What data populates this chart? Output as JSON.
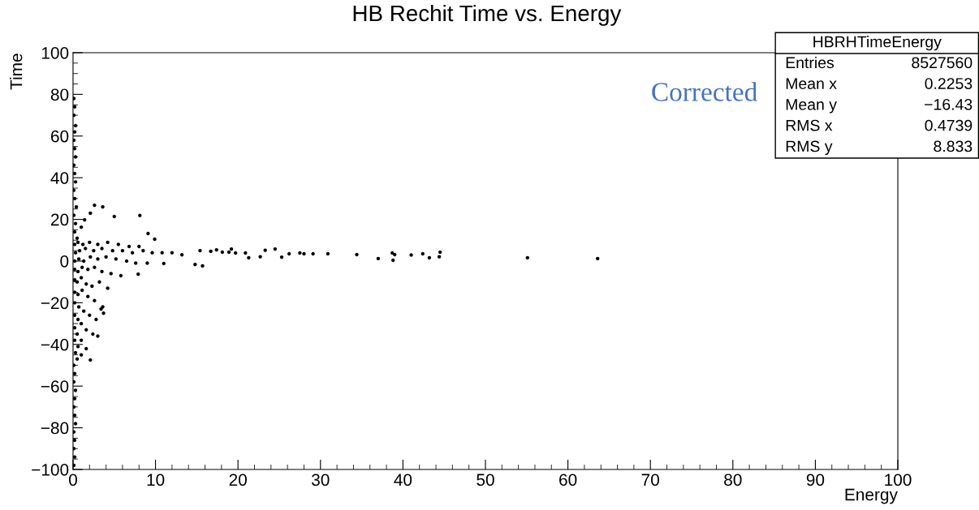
{
  "chart_data": {
    "type": "scatter",
    "title": "HB Rechit Time vs. Energy",
    "xlabel": "Energy",
    "ylabel": "Time",
    "annotations": [
      "Corrected",
      "HBRHTimeEnergy",
      "Entries",
      "8527560",
      "Mean x",
      "0.2253",
      "Mean y",
      "−16.43",
      "RMS x",
      "0.4739",
      "RMS y",
      "8.833"
    ],
    "xlim": [
      0,
      100
    ],
    "ylim": [
      -100,
      100
    ],
    "xticks": [
      0,
      10,
      20,
      30,
      40,
      50,
      60,
      70,
      80,
      90,
      100
    ],
    "yticks": [
      {
        "value": -100,
        "label": "−100"
      },
      {
        "value": -80,
        "label": "−80"
      },
      {
        "value": -60,
        "label": "−60"
      },
      {
        "value": -40,
        "label": "−40"
      },
      {
        "value": -20,
        "label": "−20"
      },
      0,
      20,
      40,
      60,
      80,
      100
    ],
    "marker": "circle",
    "grid": false,
    "legend": false,
    "series": [
      {
        "color": "#000000",
        "x": [
          0.1,
          0.2,
          0.1,
          0.3,
          0.2,
          0.1,
          0.2,
          0.3,
          0.1,
          0.2,
          0.3,
          0.1,
          0.2,
          0.4,
          0.1,
          0.3,
          0.2,
          0.5,
          0.1,
          0.2,
          0.1,
          0.3,
          0.2,
          0.1,
          0.2,
          0.3,
          0.1,
          0.2,
          0.1,
          0.2,
          0.1,
          0.2,
          0.6,
          1.2,
          2,
          3,
          4.2,
          5.5,
          6.8,
          8,
          0.3,
          0.8,
          1.5,
          2.5,
          3.5,
          4.8,
          6,
          7.2,
          8.5,
          9.6,
          10.8,
          12,
          13.2,
          0.2,
          0.7,
          1.3,
          2.1,
          3,
          4,
          5.2,
          6.5,
          7.6,
          9,
          0.2,
          0.6,
          1.1,
          1.8,
          2.6,
          3.5,
          4.6,
          5.8,
          0.2,
          0.5,
          1,
          1.6,
          2.3,
          3.2,
          4.2,
          0.2,
          0.6,
          1.1,
          1.8,
          2.6,
          3.6,
          0.2,
          0.7,
          1.3,
          2,
          2.8,
          0.2,
          0.6,
          1,
          1.6,
          2.4,
          0.2,
          0.5,
          1,
          1.6,
          0.2,
          0.6,
          1,
          0.3,
          0.5,
          2.6,
          3.6,
          2.1,
          5,
          8.1,
          9.1,
          1.4,
          9.9,
          1,
          2.1,
          3,
          3.7,
          3.4,
          7.9,
          11,
          15.4,
          16.7,
          17.4,
          18.1,
          18.9,
          19.2,
          19.7,
          20.9,
          21.3,
          22.7,
          23.3,
          24.5,
          25.3,
          26.2,
          27.5,
          28,
          29.1,
          30.9,
          34.4,
          37,
          38.7,
          38.8,
          39,
          41,
          42.4,
          43.2,
          44.4,
          44.5,
          55.1,
          63.6,
          14.8,
          15.7
        ],
        "values": [
          78,
          74,
          70,
          65,
          62,
          58,
          54,
          50,
          46,
          42,
          38,
          34,
          30,
          26,
          22,
          18,
          14,
          11,
          -50,
          -54,
          -58,
          -62,
          -66,
          -70,
          -74,
          -78,
          -82,
          -86,
          -90,
          -94,
          -98,
          8,
          9,
          8,
          9,
          8,
          9,
          8,
          7,
          7,
          4,
          5,
          6,
          5,
          6,
          5,
          5,
          4,
          5,
          4,
          4,
          4,
          3,
          0,
          1,
          0,
          2,
          1,
          2,
          1,
          0,
          -1,
          -1,
          -4,
          -5,
          -3,
          -4,
          -3,
          -5,
          -6,
          -7,
          -9,
          -10,
          -8,
          -11,
          -12,
          -10,
          -13,
          -15,
          -16,
          -14,
          -17,
          -19,
          -22,
          -20,
          -22,
          -24,
          -26,
          -28,
          -26,
          -28,
          -30,
          -33,
          -35,
          -32,
          -35,
          -38,
          -42,
          -38,
          -41,
          -45,
          -44,
          -47,
          26.8,
          26,
          23,
          21.4,
          21.9,
          13.2,
          19.8,
          10.5,
          16.3,
          -47.5,
          -36,
          -25,
          -23,
          -6.3,
          -1.2,
          5,
          4.7,
          5.4,
          4.3,
          4.3,
          5.8,
          3.9,
          3.9,
          1.6,
          2.1,
          5.2,
          5.8,
          1.9,
          3.5,
          3.9,
          3.5,
          3.5,
          3.5,
          3.1,
          1.2,
          3.9,
          0.4,
          3.1,
          2.9,
          3.5,
          1.6,
          2.1,
          4.3,
          1.6,
          1.2,
          -1.6,
          -2.3
        ]
      }
    ]
  }
}
